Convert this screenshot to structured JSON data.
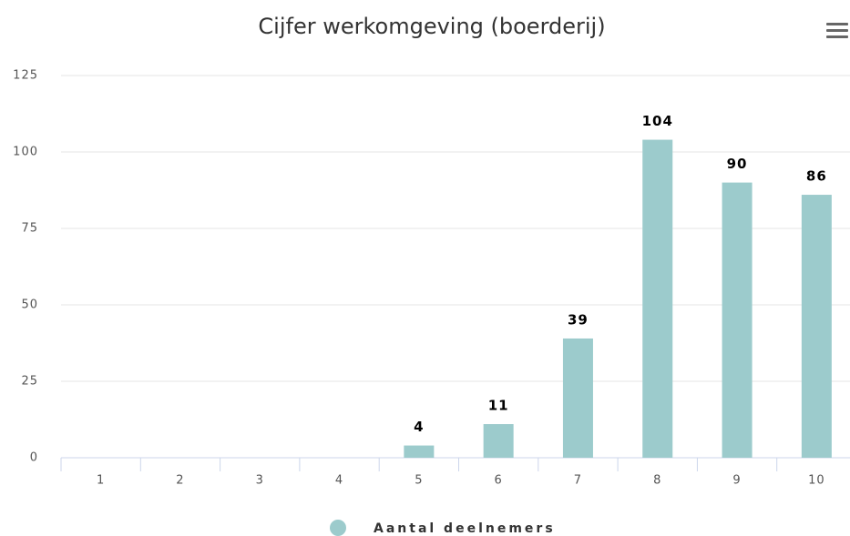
{
  "chart_data": {
    "type": "bar",
    "title": "Cijfer werkomgeving (boerderij)",
    "categories": [
      "1",
      "2",
      "3",
      "4",
      "5",
      "6",
      "7",
      "8",
      "9",
      "10"
    ],
    "series": [
      {
        "name": "Aantal deelnemers",
        "color": "#9ccbcc",
        "values": [
          0,
          0,
          0,
          0,
          4,
          11,
          39,
          104,
          90,
          86
        ]
      }
    ],
    "ylim": [
      0,
      125
    ],
    "yticks": [
      0,
      25,
      50,
      75,
      100,
      125
    ],
    "grid": true,
    "legend": "bottom"
  }
}
